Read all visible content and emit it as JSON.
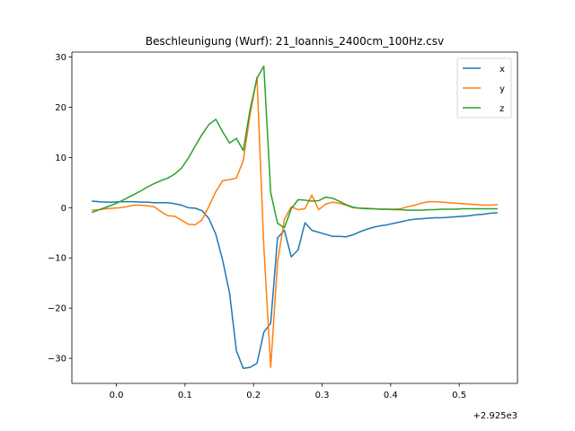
{
  "chart_data": {
    "type": "line",
    "title": "Beschleunigung (Wurf): 21_Ioannis_2400cm_100Hz.csv",
    "xlabel": "",
    "ylabel": "",
    "x_offset_label": "+2.925e3",
    "xlim": [
      -0.065,
      0.585
    ],
    "ylim": [
      -35,
      31
    ],
    "xticks": [
      0.0,
      0.1,
      0.2,
      0.3,
      0.4,
      0.5
    ],
    "xtick_labels": [
      "0.0",
      "0.1",
      "0.2",
      "0.3",
      "0.4",
      "0.5"
    ],
    "yticks": [
      -30,
      -20,
      -10,
      0,
      10,
      20,
      30
    ],
    "ytick_labels": [
      "−30",
      "−20",
      "−10",
      "0",
      "10",
      "20",
      "30"
    ],
    "grid": false,
    "legend_position": "top-right",
    "series": [
      {
        "name": "x",
        "color": "#1f77b4",
        "x": [
          -0.035,
          -0.025,
          -0.015,
          -0.005,
          0.005,
          0.015,
          0.025,
          0.035,
          0.045,
          0.055,
          0.065,
          0.075,
          0.085,
          0.095,
          0.105,
          0.115,
          0.125,
          0.135,
          0.145,
          0.155,
          0.165,
          0.175,
          0.185,
          0.195,
          0.205,
          0.215,
          0.225,
          0.235,
          0.245,
          0.255,
          0.265,
          0.275,
          0.285,
          0.295,
          0.305,
          0.315,
          0.325,
          0.335,
          0.345,
          0.355,
          0.365,
          0.375,
          0.385,
          0.395,
          0.405,
          0.415,
          0.425,
          0.435,
          0.445,
          0.455,
          0.465,
          0.475,
          0.485,
          0.495,
          0.505,
          0.515,
          0.525,
          0.535,
          0.545,
          0.555
        ],
        "values": [
          1.3,
          1.2,
          1.1,
          1.1,
          1.2,
          1.2,
          1.2,
          1.1,
          1.1,
          1.0,
          1.0,
          1.0,
          0.8,
          0.5,
          0.0,
          -0.1,
          -0.6,
          -2.2,
          -5.3,
          -10.5,
          -17.0,
          -28.5,
          -32.0,
          -31.8,
          -31.0,
          -24.8,
          -23.0,
          -6.0,
          -4.5,
          -9.8,
          -8.4,
          -3.0,
          -4.5,
          -4.9,
          -5.3,
          -5.7,
          -5.7,
          -5.8,
          -5.4,
          -4.8,
          -4.3,
          -3.9,
          -3.6,
          -3.4,
          -3.1,
          -2.8,
          -2.5,
          -2.3,
          -2.2,
          -2.1,
          -2.0,
          -2.0,
          -1.9,
          -1.8,
          -1.7,
          -1.6,
          -1.4,
          -1.3,
          -1.1,
          -1.0
        ]
      },
      {
        "name": "y",
        "color": "#ff7f0e",
        "x": [
          -0.035,
          -0.025,
          -0.015,
          -0.005,
          0.005,
          0.015,
          0.025,
          0.035,
          0.045,
          0.055,
          0.065,
          0.075,
          0.085,
          0.095,
          0.105,
          0.115,
          0.125,
          0.135,
          0.145,
          0.155,
          0.165,
          0.175,
          0.185,
          0.195,
          0.205,
          0.215,
          0.225,
          0.235,
          0.245,
          0.255,
          0.265,
          0.275,
          0.285,
          0.295,
          0.305,
          0.315,
          0.325,
          0.335,
          0.345,
          0.355,
          0.365,
          0.375,
          0.385,
          0.395,
          0.405,
          0.415,
          0.425,
          0.435,
          0.445,
          0.455,
          0.465,
          0.475,
          0.485,
          0.495,
          0.505,
          0.515,
          0.525,
          0.535,
          0.545,
          0.555
        ],
        "values": [
          -0.5,
          -0.4,
          -0.2,
          -0.1,
          0.0,
          0.2,
          0.5,
          0.5,
          0.4,
          0.2,
          -0.8,
          -1.6,
          -1.7,
          -2.5,
          -3.3,
          -3.4,
          -2.4,
          0.3,
          3.2,
          5.4,
          5.6,
          5.9,
          9.4,
          18.6,
          26.0,
          -7.8,
          -31.8,
          -10.8,
          -2.3,
          0.2,
          -0.4,
          -0.2,
          2.5,
          -0.4,
          0.7,
          1.1,
          0.9,
          0.5,
          0.0,
          -0.1,
          -0.1,
          -0.2,
          -0.3,
          -0.3,
          -0.3,
          -0.2,
          0.2,
          0.5,
          0.9,
          1.2,
          1.2,
          1.1,
          1.0,
          0.9,
          0.8,
          0.7,
          0.6,
          0.5,
          0.5,
          0.6
        ]
      },
      {
        "name": "z",
        "color": "#2ca02c",
        "x": [
          -0.035,
          -0.025,
          -0.015,
          -0.005,
          0.005,
          0.015,
          0.025,
          0.035,
          0.045,
          0.055,
          0.065,
          0.075,
          0.085,
          0.095,
          0.105,
          0.115,
          0.125,
          0.135,
          0.145,
          0.155,
          0.165,
          0.175,
          0.185,
          0.195,
          0.205,
          0.215,
          0.225,
          0.235,
          0.245,
          0.255,
          0.265,
          0.275,
          0.285,
          0.295,
          0.305,
          0.315,
          0.325,
          0.335,
          0.345,
          0.355,
          0.365,
          0.375,
          0.385,
          0.395,
          0.405,
          0.415,
          0.425,
          0.435,
          0.445,
          0.455,
          0.465,
          0.475,
          0.485,
          0.495,
          0.505,
          0.515,
          0.525,
          0.535,
          0.545,
          0.555
        ],
        "values": [
          -0.9,
          -0.4,
          0.1,
          0.6,
          1.2,
          1.9,
          2.6,
          3.3,
          4.1,
          4.8,
          5.4,
          5.9,
          6.7,
          7.9,
          9.9,
          12.3,
          14.6,
          16.6,
          17.6,
          15.1,
          12.9,
          13.8,
          11.4,
          19.6,
          25.8,
          28.2,
          3.0,
          -3.1,
          -4.0,
          -0.2,
          1.6,
          1.5,
          1.3,
          1.4,
          2.1,
          1.9,
          1.3,
          0.6,
          0.1,
          -0.1,
          -0.2,
          -0.2,
          -0.3,
          -0.3,
          -0.4,
          -0.4,
          -0.5,
          -0.5,
          -0.5,
          -0.4,
          -0.4,
          -0.3,
          -0.3,
          -0.3,
          -0.2,
          -0.2,
          -0.2,
          -0.2,
          -0.2,
          -0.2
        ]
      }
    ]
  }
}
